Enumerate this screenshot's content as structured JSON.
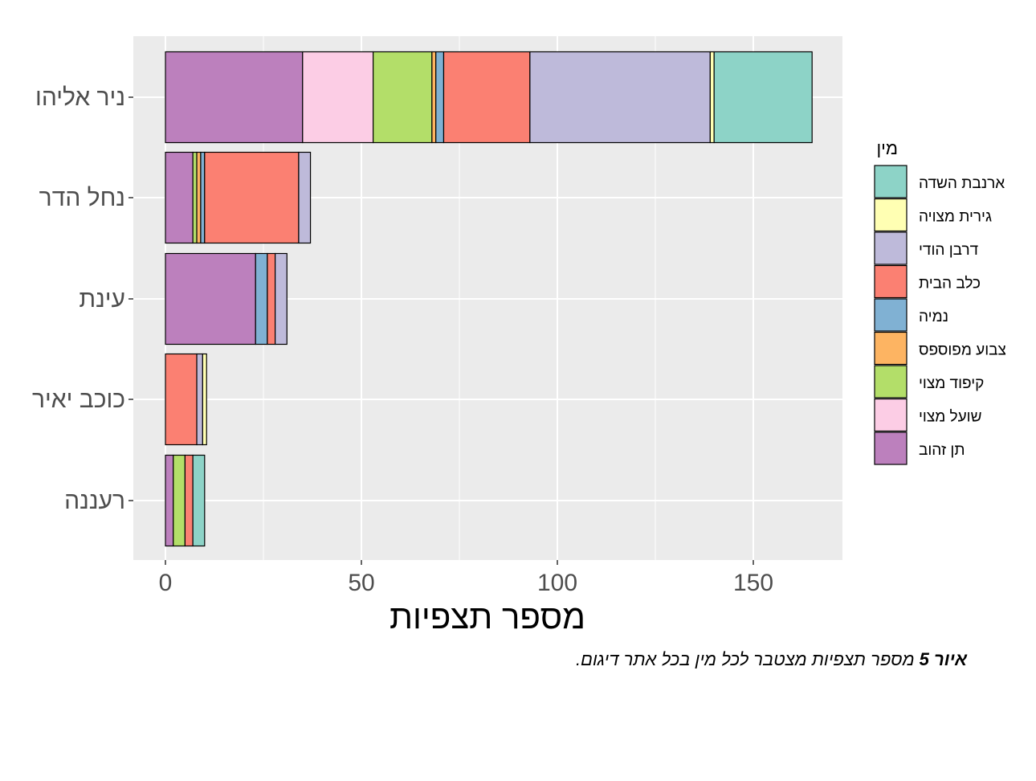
{
  "chart_data": {
    "type": "stacked-bar-horizontal",
    "categories": [
      "ניר אליהו",
      "נחל הדר",
      "עינת",
      "כוכב יאיר",
      "רעננה"
    ],
    "xlabel": "מספר תצפיות",
    "ylabel": "",
    "xlim": [
      -8,
      172
    ],
    "xticks": [
      0,
      50,
      100,
      150
    ],
    "legend_title": "מין",
    "legend_position": "right",
    "series": [
      {
        "name": "תן זהוב",
        "color": "#BC80BD",
        "values": [
          35,
          7,
          23,
          0,
          2
        ]
      },
      {
        "name": "שועל מצוי",
        "color": "#FCCDE5",
        "values": [
          18,
          0,
          0,
          0,
          0
        ]
      },
      {
        "name": "קיפוד מצוי",
        "color": "#B3DE69",
        "values": [
          15,
          1,
          0,
          0,
          3
        ]
      },
      {
        "name": "צבוע מפוספס",
        "color": "#FDB462",
        "values": [
          1,
          1,
          0,
          0,
          0
        ]
      },
      {
        "name": "נמיה",
        "color": "#80B1D3",
        "values": [
          2,
          1,
          3,
          0,
          0
        ]
      },
      {
        "name": "כלב הבית",
        "color": "#FB8072",
        "values": [
          22,
          24,
          2,
          8,
          2
        ]
      },
      {
        "name": "דרבן הודי",
        "color": "#BEBADA",
        "values": [
          46,
          3,
          3,
          1.5,
          0
        ]
      },
      {
        "name": "גירית מצויה",
        "color": "#FFFFB3",
        "values": [
          1,
          0,
          0,
          1,
          0
        ]
      },
      {
        "name": "ארנבת השדה",
        "color": "#8DD3C7",
        "values": [
          25,
          0,
          0,
          0,
          3
        ]
      }
    ]
  },
  "caption": {
    "label": "איור 5",
    "text": " מספר תצפיות מצטבר לכל מין בכל אתר דיגום."
  }
}
